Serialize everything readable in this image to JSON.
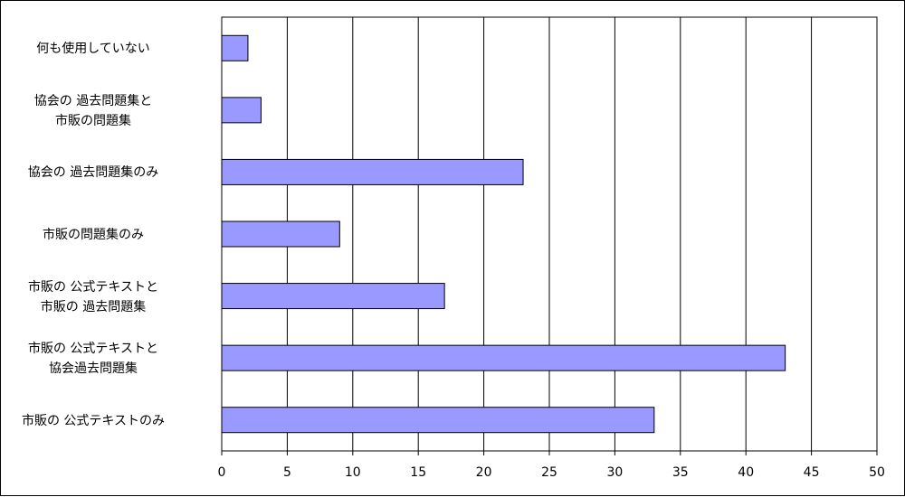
{
  "chart_data": {
    "type": "barh",
    "categories": [
      "何も使用していない",
      "協会の 過去問題集と\n市販の問題集",
      "協会の 過去問題集のみ",
      "市販の問題集のみ",
      "市販の 公式テキストと\n市販の 過去問題集",
      "市販の 公式テキストと\n協会過去問題集",
      "市販の 公式テキストのみ"
    ],
    "values": [
      2,
      3,
      23,
      9,
      17,
      43,
      33
    ],
    "color": "#9999ff",
    "xlim": [
      0,
      50
    ],
    "xticks": [
      0,
      5,
      10,
      15,
      20,
      25,
      30,
      35,
      40,
      45,
      50
    ],
    "grid": true
  }
}
